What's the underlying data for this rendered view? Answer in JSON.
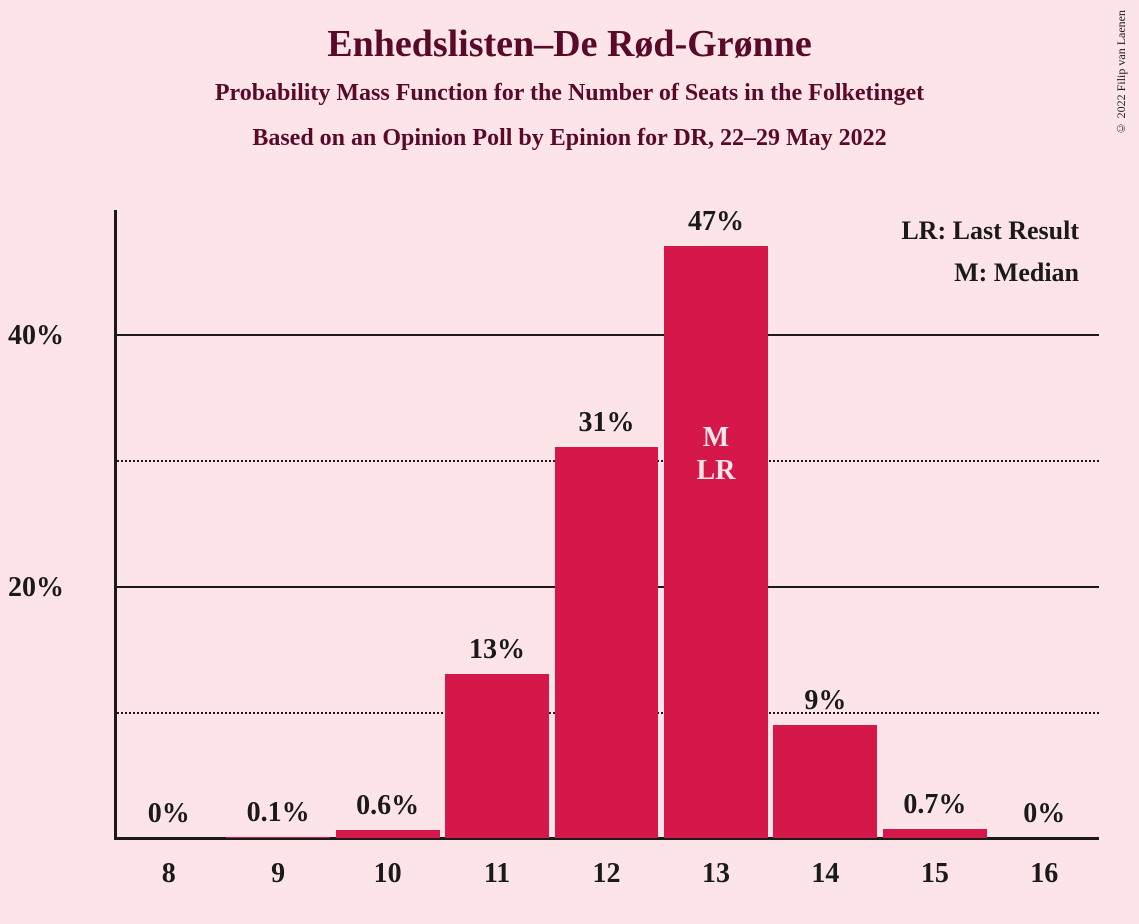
{
  "title": "Enhedslisten–De Rød-Grønne",
  "subtitle": "Probability Mass Function for the Number of Seats in the Folketinget",
  "subtitle2": "Based on an Opinion Poll by Epinion for DR, 22–29 May 2022",
  "copyright": "© 2022 Filip van Laenen",
  "legend": {
    "lr": "LR: Last Result",
    "m": "M: Median"
  },
  "chart": {
    "type": "bar",
    "background_color": "#fce4e8",
    "bar_color": "#d6174a",
    "text_color": "#1a1a1a",
    "title_color": "#5a0a28",
    "annotation_text_color": "#fce4e8",
    "title_fontsize": 38,
    "subtitle_fontsize": 24,
    "axis_fontsize": 28,
    "ylim": [
      0,
      50
    ],
    "ytick_step": 10,
    "y_major_ticks": [
      20,
      40
    ],
    "y_minor_ticks": [
      10,
      30
    ],
    "y_labels": [
      "20%",
      "40%"
    ],
    "categories": [
      "8",
      "9",
      "10",
      "11",
      "12",
      "13",
      "14",
      "15",
      "16"
    ],
    "values": [
      0,
      0.1,
      0.6,
      13,
      31,
      47,
      9,
      0.7,
      0
    ],
    "value_labels": [
      "0%",
      "0.1%",
      "0.6%",
      "13%",
      "31%",
      "47%",
      "9%",
      "0.7%",
      "0%"
    ],
    "bar_width_ratio": 0.95,
    "annotations": {
      "index": 5,
      "lines": [
        "M",
        "LR"
      ]
    }
  }
}
